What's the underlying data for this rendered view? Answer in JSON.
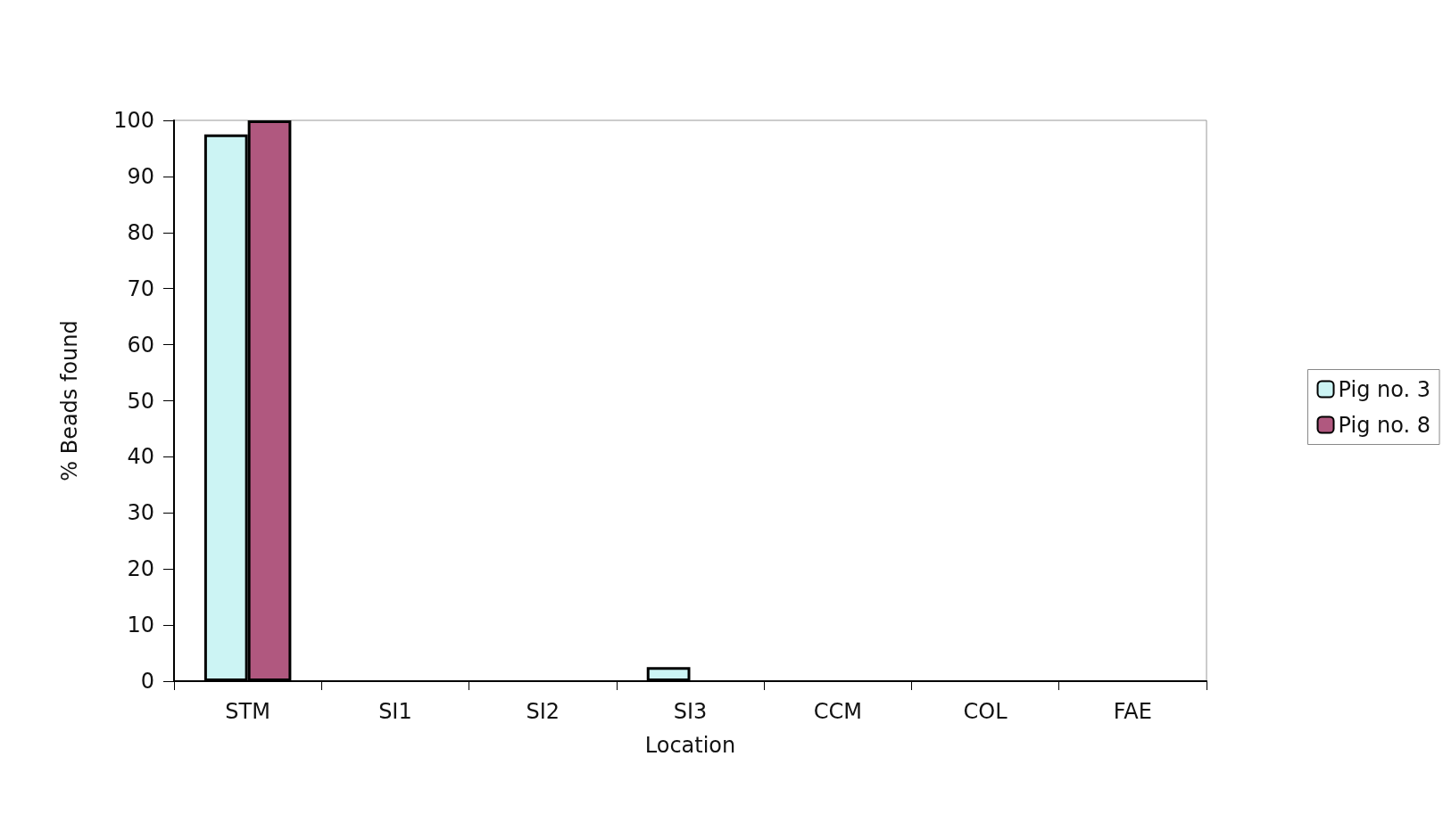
{
  "chart_data": {
    "type": "bar",
    "xlabel": "Location",
    "ylabel": "% Beads found",
    "categories": [
      "STM",
      "SI1",
      "SI2",
      "SI3",
      "CCM",
      "COL",
      "FAE"
    ],
    "series": [
      {
        "name": "Pig no. 3",
        "color": "#ccf4f4",
        "values": [
          97.5,
          0,
          0,
          2.5,
          0,
          0,
          0
        ]
      },
      {
        "name": "Pig no. 8",
        "color": "#b0587f",
        "values": [
          100,
          0,
          0,
          0,
          0,
          0,
          0
        ]
      }
    ],
    "ylim": [
      0,
      100
    ],
    "yticks": [
      0,
      10,
      20,
      30,
      40,
      50,
      60,
      70,
      80,
      90,
      100
    ],
    "grid": false,
    "legend": "right"
  }
}
